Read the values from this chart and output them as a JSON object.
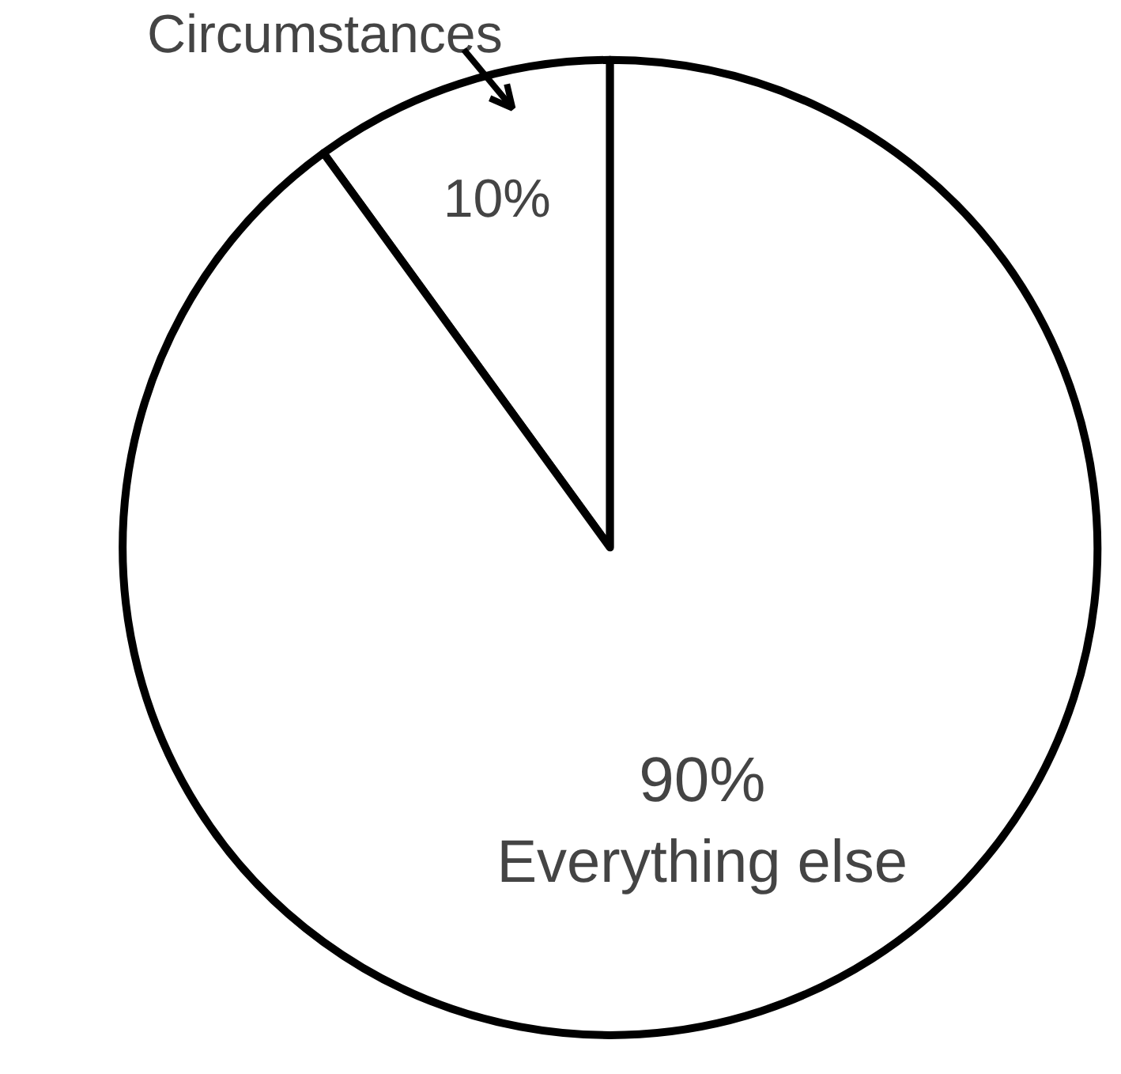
{
  "chart_data": {
    "type": "pie",
    "categories": [
      "Circumstances",
      "Everything else"
    ],
    "values": [
      10,
      90
    ],
    "value_labels": [
      "10%",
      "90%"
    ],
    "colors": [
      "#ffffff",
      "#ffffff"
    ]
  }
}
